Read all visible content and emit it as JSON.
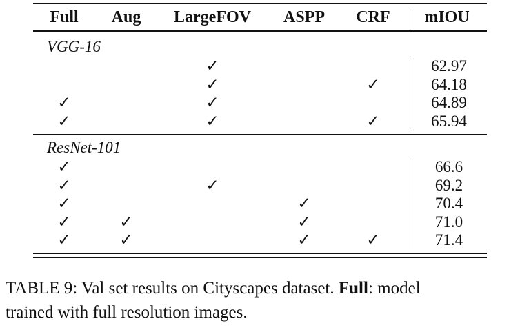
{
  "table": {
    "headers": [
      "Full",
      "Aug",
      "LargeFOV",
      "ASPP",
      "CRF",
      "mIOU"
    ],
    "groups": [
      {
        "name": "VGG-16",
        "rows": [
          {
            "full": false,
            "aug": false,
            "largefov": true,
            "aspp": false,
            "crf": false,
            "miou": "62.97"
          },
          {
            "full": false,
            "aug": false,
            "largefov": true,
            "aspp": false,
            "crf": true,
            "miou": "64.18"
          },
          {
            "full": true,
            "aug": false,
            "largefov": true,
            "aspp": false,
            "crf": false,
            "miou": "64.89"
          },
          {
            "full": true,
            "aug": false,
            "largefov": true,
            "aspp": false,
            "crf": true,
            "miou": "65.94"
          }
        ]
      },
      {
        "name": "ResNet-101",
        "rows": [
          {
            "full": true,
            "aug": false,
            "largefov": false,
            "aspp": false,
            "crf": false,
            "miou": "66.6"
          },
          {
            "full": true,
            "aug": false,
            "largefov": true,
            "aspp": false,
            "crf": false,
            "miou": "69.2"
          },
          {
            "full": true,
            "aug": false,
            "largefov": false,
            "aspp": true,
            "crf": false,
            "miou": "70.4"
          },
          {
            "full": true,
            "aug": true,
            "largefov": false,
            "aspp": true,
            "crf": false,
            "miou": "71.0"
          },
          {
            "full": true,
            "aug": true,
            "largefov": false,
            "aspp": true,
            "crf": true,
            "miou": "71.4"
          }
        ]
      }
    ],
    "check_symbol": "✓"
  },
  "caption": {
    "prefix": "TABLE 9: Val set results on Cityscapes dataset. ",
    "bold": "Full",
    "suffix": ": model",
    "line2": "trained with full resolution images."
  }
}
